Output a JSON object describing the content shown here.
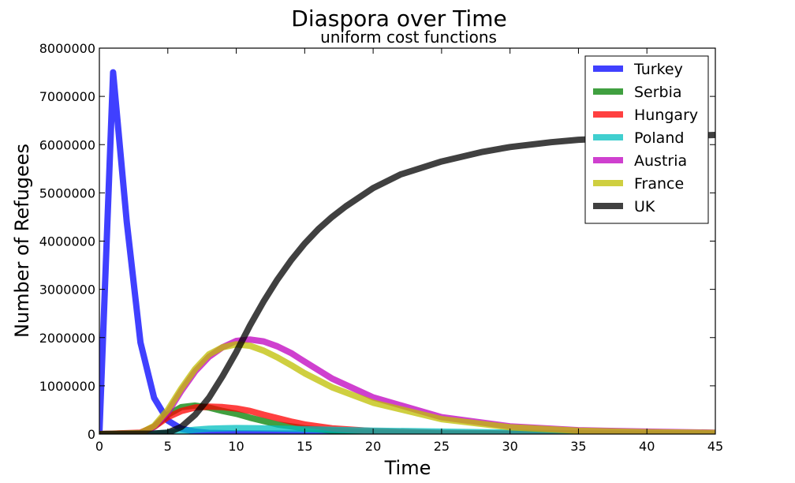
{
  "chart_data": {
    "type": "line",
    "title": "Diaspora over Time",
    "subtitle": "uniform cost functions",
    "xlabel": "Time",
    "ylabel": "Number of Refugees",
    "xlim": [
      0,
      45
    ],
    "ylim": [
      0,
      8000000
    ],
    "xticks": [
      0,
      5,
      10,
      15,
      20,
      25,
      30,
      35,
      40,
      45
    ],
    "yticks": [
      0,
      1000000,
      2000000,
      3000000,
      4000000,
      5000000,
      6000000,
      7000000,
      8000000
    ],
    "grid": false,
    "legend_position": "top-right",
    "series": [
      {
        "name": "Turkey",
        "color": "#0000ff",
        "points": [
          [
            0,
            0
          ],
          [
            1,
            7500000
          ],
          [
            2,
            4400000
          ],
          [
            3,
            1900000
          ],
          [
            4,
            750000
          ],
          [
            5,
            280000
          ],
          [
            6,
            110000
          ],
          [
            7,
            50000
          ],
          [
            8,
            25000
          ],
          [
            10,
            15000
          ],
          [
            15,
            10000
          ],
          [
            20,
            8000
          ],
          [
            30,
            5000
          ],
          [
            45,
            3000
          ]
        ]
      },
      {
        "name": "Serbia",
        "color": "#008000",
        "points": [
          [
            0,
            0
          ],
          [
            3,
            20000
          ],
          [
            4,
            150000
          ],
          [
            5,
            400000
          ],
          [
            6,
            560000
          ],
          [
            7,
            590000
          ],
          [
            8,
            550000
          ],
          [
            9,
            480000
          ],
          [
            10,
            420000
          ],
          [
            11,
            340000
          ],
          [
            12,
            270000
          ],
          [
            13,
            200000
          ],
          [
            15,
            120000
          ],
          [
            17,
            70000
          ],
          [
            20,
            35000
          ],
          [
            25,
            15000
          ],
          [
            30,
            8000
          ],
          [
            45,
            3000
          ]
        ]
      },
      {
        "name": "Hungary",
        "color": "#ff0000",
        "points": [
          [
            0,
            0
          ],
          [
            3,
            30000
          ],
          [
            4,
            150000
          ],
          [
            5,
            350000
          ],
          [
            6,
            480000
          ],
          [
            7,
            550000
          ],
          [
            8,
            570000
          ],
          [
            9,
            560000
          ],
          [
            10,
            530000
          ],
          [
            11,
            480000
          ],
          [
            12,
            400000
          ],
          [
            13,
            330000
          ],
          [
            14,
            260000
          ],
          [
            15,
            200000
          ],
          [
            17,
            120000
          ],
          [
            20,
            60000
          ],
          [
            25,
            25000
          ],
          [
            30,
            12000
          ],
          [
            45,
            4000
          ]
        ]
      },
      {
        "name": "Poland",
        "color": "#00bfbf",
        "points": [
          [
            0,
            0
          ],
          [
            4,
            10000
          ],
          [
            5,
            30000
          ],
          [
            6,
            60000
          ],
          [
            7,
            90000
          ],
          [
            8,
            110000
          ],
          [
            9,
            120000
          ],
          [
            10,
            125000
          ],
          [
            12,
            120000
          ],
          [
            15,
            100000
          ],
          [
            20,
            70000
          ],
          [
            25,
            50000
          ],
          [
            30,
            30000
          ],
          [
            35,
            15000
          ],
          [
            45,
            5000
          ]
        ]
      },
      {
        "name": "Austria",
        "color": "#bf00bf",
        "points": [
          [
            0,
            0
          ],
          [
            3,
            20000
          ],
          [
            4,
            150000
          ],
          [
            5,
            450000
          ],
          [
            6,
            900000
          ],
          [
            7,
            1300000
          ],
          [
            8,
            1600000
          ],
          [
            9,
            1800000
          ],
          [
            10,
            1930000
          ],
          [
            11,
            1960000
          ],
          [
            12,
            1920000
          ],
          [
            13,
            1820000
          ],
          [
            14,
            1680000
          ],
          [
            15,
            1500000
          ],
          [
            17,
            1150000
          ],
          [
            20,
            760000
          ],
          [
            25,
            350000
          ],
          [
            30,
            160000
          ],
          [
            35,
            80000
          ],
          [
            40,
            50000
          ],
          [
            45,
            30000
          ]
        ]
      },
      {
        "name": "France",
        "color": "#bfbf00",
        "points": [
          [
            0,
            0
          ],
          [
            3,
            20000
          ],
          [
            4,
            170000
          ],
          [
            5,
            500000
          ],
          [
            6,
            950000
          ],
          [
            7,
            1350000
          ],
          [
            8,
            1650000
          ],
          [
            9,
            1800000
          ],
          [
            10,
            1860000
          ],
          [
            11,
            1830000
          ],
          [
            12,
            1730000
          ],
          [
            13,
            1590000
          ],
          [
            14,
            1430000
          ],
          [
            15,
            1260000
          ],
          [
            17,
            970000
          ],
          [
            20,
            650000
          ],
          [
            25,
            310000
          ],
          [
            30,
            140000
          ],
          [
            35,
            70000
          ],
          [
            40,
            40000
          ],
          [
            45,
            25000
          ]
        ]
      },
      {
        "name": "UK",
        "color": "#000000",
        "points": [
          [
            0,
            0
          ],
          [
            4,
            10000
          ],
          [
            5,
            30000
          ],
          [
            6,
            150000
          ],
          [
            7,
            400000
          ],
          [
            8,
            750000
          ],
          [
            9,
            1200000
          ],
          [
            10,
            1700000
          ],
          [
            11,
            2250000
          ],
          [
            12,
            2750000
          ],
          [
            13,
            3200000
          ],
          [
            14,
            3600000
          ],
          [
            15,
            3950000
          ],
          [
            16,
            4250000
          ],
          [
            17,
            4500000
          ],
          [
            18,
            4720000
          ],
          [
            20,
            5100000
          ],
          [
            22,
            5380000
          ],
          [
            25,
            5650000
          ],
          [
            28,
            5850000
          ],
          [
            30,
            5950000
          ],
          [
            33,
            6050000
          ],
          [
            35,
            6100000
          ],
          [
            40,
            6160000
          ],
          [
            45,
            6200000
          ]
        ]
      }
    ]
  }
}
